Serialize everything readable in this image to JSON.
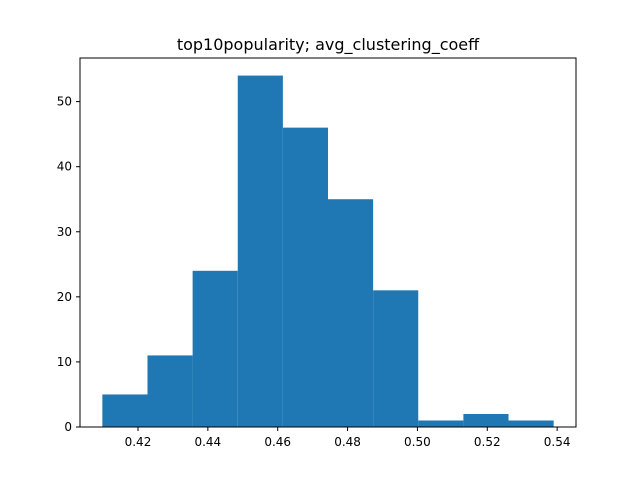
{
  "chart_data": {
    "type": "bar",
    "title": "top10popularity; avg_clustering_coeff",
    "xlabel": "",
    "ylabel": "",
    "bin_edges": [
      0.4098,
      0.42272,
      0.43564,
      0.44856,
      0.46148,
      0.4744,
      0.48732,
      0.50024,
      0.51316,
      0.52608,
      0.539
    ],
    "values": [
      5,
      11,
      24,
      54,
      46,
      35,
      21,
      1,
      2,
      1
    ],
    "xlim": [
      0.4034,
      0.5454
    ],
    "ylim": [
      0,
      56.7
    ],
    "xticks": [
      0.42,
      0.44,
      0.46,
      0.48,
      0.5,
      0.52,
      0.54
    ],
    "xtick_labels": [
      "0.42",
      "0.44",
      "0.46",
      "0.48",
      "0.50",
      "0.52",
      "0.54"
    ],
    "yticks": [
      0,
      10,
      20,
      30,
      40,
      50
    ],
    "ytick_labels": [
      "0",
      "10",
      "20",
      "30",
      "40",
      "50"
    ],
    "bar_color": "#1f77b4",
    "grid": false,
    "legend": "none"
  }
}
